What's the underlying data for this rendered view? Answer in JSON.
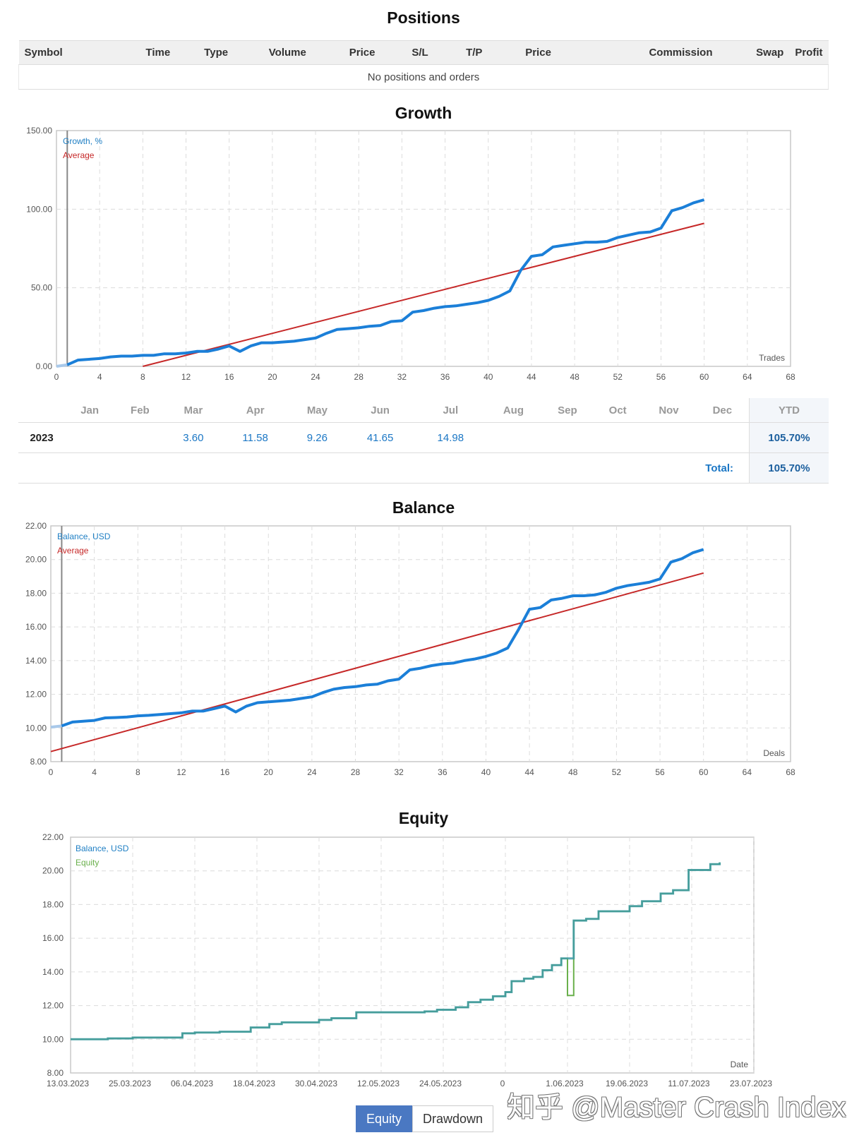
{
  "positions": {
    "title": "Positions",
    "columns": [
      "Symbol",
      "Time",
      "Type",
      "Volume",
      "Price",
      "S/L",
      "T/P",
      "Price",
      "Commission",
      "Swap",
      "Profit"
    ],
    "empty_text": "No positions and orders"
  },
  "growth": {
    "title": "Growth",
    "legend_series": "Growth, %",
    "legend_average": "Average",
    "xaxis_caption": "Trades",
    "y_ticks": [
      "150.00",
      "100.00",
      "50.00",
      "0.00"
    ],
    "x_ticks": [
      "0",
      "4",
      "8",
      "12",
      "16",
      "20",
      "24",
      "28",
      "32",
      "36",
      "40",
      "44",
      "48",
      "52",
      "56",
      "60",
      "64",
      "68"
    ],
    "months_header": [
      "",
      "Jan",
      "Feb",
      "Mar",
      "Apr",
      "May",
      "Jun",
      "Jul",
      "Aug",
      "Sep",
      "Oct",
      "Nov",
      "Dec",
      "YTD"
    ],
    "year_row": {
      "year": "2023",
      "values": [
        "",
        "",
        "3.60",
        "11.58",
        "9.26",
        "41.65",
        "14.98",
        "",
        "",
        "",
        "",
        ""
      ],
      "ytd": "105.70%"
    },
    "total_label": "Total:",
    "total_value": "105.70%"
  },
  "balance": {
    "title": "Balance",
    "legend_series": "Balance, USD",
    "legend_average": "Average",
    "xaxis_caption": "Deals",
    "y_ticks": [
      "22.00",
      "20.00",
      "18.00",
      "16.00",
      "14.00",
      "12.00",
      "10.00",
      "8.00"
    ],
    "x_ticks": [
      "0",
      "4",
      "8",
      "12",
      "16",
      "20",
      "24",
      "28",
      "32",
      "36",
      "40",
      "44",
      "48",
      "52",
      "56",
      "60",
      "64",
      "68"
    ]
  },
  "equity": {
    "title": "Equity",
    "legend_balance": "Balance, USD",
    "legend_equity": "Equity",
    "xaxis_caption": "Date",
    "y_ticks": [
      "22.00",
      "20.00",
      "18.00",
      "16.00",
      "14.00",
      "12.00",
      "10.00",
      "8.00"
    ],
    "x_ticks": [
      "13.03.2023",
      "25.03.2023",
      "06.04.2023",
      "18.04.2023",
      "30.04.2023",
      "12.05.2023",
      "24.05.2023",
      "0",
      "1.06.2023",
      "19.06.2023",
      "11.07.2023",
      "23.07.2023"
    ]
  },
  "tabs": {
    "equity": "Equity",
    "drawdown": "Drawdown"
  },
  "watermark": "知乎 @Master Crash Index",
  "colors": {
    "series": "#1b7fd8",
    "average": "#c62828",
    "equity": "#6ab04c",
    "tab_active": "#4a78c2"
  },
  "chart_data": [
    {
      "type": "line",
      "title": "Growth",
      "xlabel": "Trades",
      "ylabel": "",
      "xlim": [
        0,
        68
      ],
      "ylim": [
        0,
        150
      ],
      "grid": true,
      "legend": "top-left",
      "series": [
        {
          "name": "Growth, %",
          "x": [
            0,
            1,
            2,
            4,
            5,
            6,
            7,
            8,
            9,
            10,
            11,
            12,
            13,
            14,
            15,
            16,
            17,
            18,
            19,
            20,
            21,
            22,
            23,
            24,
            25,
            26,
            27,
            28,
            29,
            30,
            31,
            32,
            33,
            34,
            35,
            36,
            37,
            38,
            39,
            40,
            41,
            42,
            43,
            44,
            45,
            46,
            47,
            48,
            49,
            50,
            51,
            52,
            53,
            54,
            55,
            56,
            57,
            58,
            59,
            60
          ],
          "y": [
            0,
            1,
            4,
            5,
            6,
            6.5,
            6.5,
            7,
            7,
            8,
            8,
            8.5,
            9.5,
            9.5,
            11,
            13,
            9.5,
            13,
            15,
            15,
            15.5,
            16,
            17,
            18,
            21,
            23.5,
            24,
            24.5,
            25.5,
            26,
            28.5,
            29,
            34.5,
            35.5,
            37,
            38,
            38.5,
            39.5,
            40.5,
            42,
            44.5,
            48,
            61,
            70,
            71,
            76,
            77,
            78,
            79,
            79,
            79.5,
            82,
            83.5,
            85,
            85.5,
            88,
            99,
            101,
            104,
            106
          ]
        },
        {
          "name": "Average",
          "x": [
            8,
            60
          ],
          "y": [
            0,
            91
          ]
        }
      ]
    },
    {
      "type": "line",
      "title": "Balance",
      "xlabel": "Deals",
      "ylabel": "",
      "xlim": [
        0,
        68
      ],
      "ylim": [
        8,
        22
      ],
      "grid": true,
      "legend": "top-left",
      "series": [
        {
          "name": "Balance, USD",
          "x": [
            0,
            1,
            2,
            4,
            5,
            6,
            7,
            8,
            9,
            10,
            11,
            12,
            13,
            14,
            15,
            16,
            17,
            18,
            19,
            20,
            21,
            22,
            23,
            24,
            25,
            26,
            27,
            28,
            29,
            30,
            31,
            32,
            33,
            34,
            35,
            36,
            37,
            38,
            39,
            40,
            41,
            42,
            43,
            44,
            45,
            46,
            47,
            48,
            49,
            50,
            51,
            52,
            53,
            54,
            55,
            56,
            57,
            58,
            59,
            60
          ],
          "y": [
            10.05,
            10.12,
            10.35,
            10.45,
            10.6,
            10.62,
            10.65,
            10.72,
            10.75,
            10.8,
            10.85,
            10.9,
            11.0,
            11.0,
            11.15,
            11.3,
            10.95,
            11.3,
            11.5,
            11.55,
            11.6,
            11.65,
            11.75,
            11.85,
            12.1,
            12.3,
            12.4,
            12.45,
            12.55,
            12.6,
            12.8,
            12.9,
            13.45,
            13.55,
            13.7,
            13.8,
            13.85,
            14.0,
            14.1,
            14.25,
            14.45,
            14.75,
            15.85,
            17.05,
            17.15,
            17.6,
            17.7,
            17.85,
            17.85,
            17.9,
            18.05,
            18.3,
            18.45,
            18.55,
            18.65,
            18.85,
            19.85,
            20.05,
            20.4,
            20.6
          ]
        },
        {
          "name": "Average",
          "x": [
            0,
            60
          ],
          "y": [
            8.6,
            19.2
          ]
        }
      ]
    },
    {
      "type": "line",
      "title": "Equity",
      "xlabel": "Date",
      "ylabel": "",
      "ylim": [
        8,
        22
      ],
      "grid": true,
      "legend": "top-left",
      "x_categories": [
        "13.03.2023",
        "25.03.2023",
        "06.04.2023",
        "18.04.2023",
        "30.04.2023",
        "12.05.2023",
        "24.05.2023",
        "0",
        "1.06.2023",
        "19.06.2023",
        "11.07.2023",
        "23.07.2023"
      ],
      "series": [
        {
          "name": "Balance, USD",
          "x": [
            0,
            0.6,
            1.0,
            1.8,
            2.0,
            2.4,
            2.9,
            3.2,
            3.4,
            3.6,
            4.0,
            4.2,
            4.6,
            5.0,
            5.4,
            5.7,
            5.9,
            6.2,
            6.4,
            6.6,
            6.8,
            7.0,
            7.1,
            7.3,
            7.45,
            7.6,
            7.75,
            7.9,
            8.1,
            8.3,
            8.5,
            8.8,
            9.0,
            9.2,
            9.5,
            9.7,
            9.95,
            10.3,
            10.45
          ],
          "y": [
            10.0,
            10.05,
            10.1,
            10.35,
            10.4,
            10.45,
            10.7,
            10.9,
            11.0,
            11.0,
            11.15,
            11.25,
            11.6,
            11.6,
            11.6,
            11.65,
            11.75,
            11.9,
            12.2,
            12.35,
            12.55,
            12.8,
            13.45,
            13.6,
            13.7,
            14.1,
            14.4,
            14.8,
            17.05,
            17.15,
            17.6,
            17.6,
            17.9,
            18.2,
            18.65,
            18.85,
            20.05,
            20.4,
            20.5
          ]
        },
        {
          "name": "Equity",
          "x": [
            0,
            0.6,
            1.0,
            1.8,
            2.0,
            2.4,
            2.9,
            3.2,
            3.4,
            3.6,
            4.0,
            4.2,
            4.6,
            5.0,
            5.4,
            5.7,
            5.9,
            6.2,
            6.4,
            6.6,
            6.8,
            7.0,
            7.1,
            7.3,
            7.45,
            7.6,
            7.75,
            7.9,
            8.0,
            8.1,
            8.3,
            8.5,
            8.8,
            9.0,
            9.2,
            9.5,
            9.7,
            9.95,
            10.3,
            10.45
          ],
          "y": [
            10.0,
            10.05,
            10.1,
            10.35,
            10.4,
            10.45,
            10.7,
            10.9,
            11.0,
            11.0,
            11.15,
            11.25,
            11.6,
            11.6,
            11.6,
            11.65,
            11.75,
            11.9,
            12.2,
            12.35,
            12.55,
            12.8,
            13.45,
            13.6,
            13.7,
            14.1,
            14.4,
            14.8,
            12.6,
            17.05,
            17.15,
            17.6,
            17.6,
            17.9,
            18.2,
            18.65,
            18.85,
            20.05,
            20.4,
            20.5
          ]
        }
      ]
    }
  ]
}
